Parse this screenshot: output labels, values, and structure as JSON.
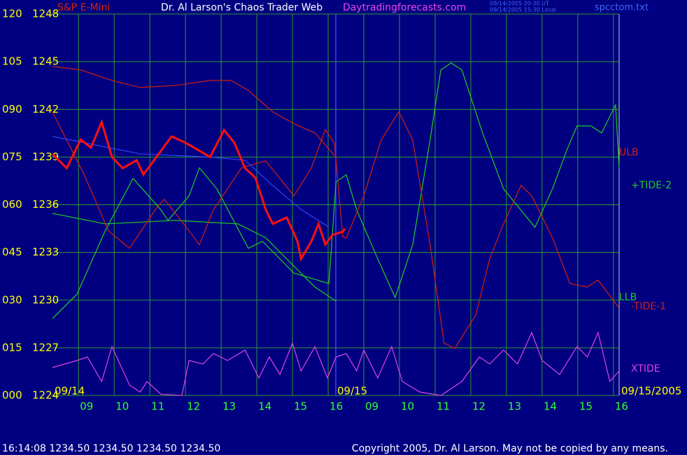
{
  "header": {
    "symbol": "S&P E-Mini",
    "title": "Dr. Al Larson's Chaos Trader Web",
    "site": "Daytradingforecasts.com",
    "ut": "09/14/2005 20:30 UT",
    "local": "09/14/2005 15:30 Local",
    "file": "spcctom.txt"
  },
  "footer": {
    "status": "16:14:08  1234.50 1234.50 1234.50 1234.50",
    "copyright": "Copyright 2005, Dr. Al Larson. May not be copied by any means."
  },
  "chart_data": {
    "type": "line",
    "annotations": [
      "09/14",
      "09/15",
      "09/15/2005"
    ],
    "xlim": [
      8.27,
      24.16
    ],
    "xticks": [
      {
        "value": 9,
        "label": "09"
      },
      10,
      11,
      12,
      13,
      14,
      15,
      16,
      {
        "value": 17,
        "label": "09"
      },
      {
        "value": 18,
        "label": "10"
      },
      {
        "value": 19,
        "label": "11"
      },
      {
        "value": 20,
        "label": "12"
      },
      {
        "value": 21,
        "label": "13"
      },
      {
        "value": 22,
        "label": "14"
      },
      {
        "value": 23,
        "label": "15"
      },
      {
        "value": 24,
        "label": "16"
      }
    ],
    "ylim": [
      0,
      120
    ],
    "yticks": [
      {
        "value": 0,
        "label": "000"
      },
      {
        "value": 15,
        "label": "015"
      },
      {
        "value": 30,
        "label": "030"
      },
      {
        "value": 45,
        "label": "045"
      },
      {
        "value": 60,
        "label": "060"
      },
      {
        "value": 75,
        "label": "075"
      },
      {
        "value": 90,
        "label": "090"
      },
      105,
      120
    ],
    "y2lim": [
      1224,
      1248
    ],
    "y2ticks": [
      1224,
      1227,
      1230,
      1233,
      1236,
      1239,
      1242,
      1245,
      1248
    ],
    "grid": true,
    "series": [
      {
        "name": "ULB",
        "color": "#d02010",
        "x": [
          8.27,
          9.06,
          9.94,
          10.73,
          11.71,
          12.69,
          13.27,
          13.76,
          14.45,
          15.04,
          15.63,
          16.22
        ],
        "values": [
          103.5,
          102.4,
          99.1,
          96.9,
          97.5,
          99.1,
          99.1,
          96.0,
          89.2,
          85.5,
          82.6,
          74.9
        ]
      },
      {
        "name": "+TIDE-2",
        "color": "#22cc22",
        "x": [
          8.27,
          8.96,
          9.75,
          10.53,
          11.31,
          11.51,
          12.1,
          12.39,
          12.88,
          13.76,
          14.16,
          15.04,
          16.02,
          16.22,
          16.51,
          16.8,
          17.39,
          17.88,
          18.37,
          18.86,
          19.16,
          19.45,
          19.75,
          20.33,
          20.92,
          21.8,
          22.29,
          22.69,
          22.98,
          23.37,
          23.67,
          24.06,
          24.16
        ],
        "values": [
          24.2,
          31.9,
          51.8,
          68.3,
          58.4,
          55.1,
          62.8,
          71.6,
          65.0,
          46.3,
          48.5,
          38.5,
          35.2,
          67.2,
          69.4,
          58.4,
          43.0,
          30.8,
          47.4,
          80.4,
          102.4,
          104.6,
          102.4,
          82.6,
          65.0,
          52.9,
          65.0,
          77.1,
          84.8,
          84.8,
          82.6,
          91.4,
          71.6
        ]
      },
      {
        "name": "LLB",
        "color": "#22cc22",
        "x": [
          8.27,
          9.75,
          11.71,
          13.47,
          14.25,
          15.04,
          15.63,
          16.22
        ],
        "values": [
          57.3,
          54.0,
          55.1,
          54.0,
          49.6,
          40.7,
          34.1,
          29.7
        ]
      },
      {
        "name": "-TIDE-1",
        "color": "#d02010",
        "x": [
          8.27,
          9.16,
          9.84,
          10.43,
          11.22,
          11.41,
          12.1,
          12.39,
          12.78,
          13.57,
          14.25,
          15.04,
          15.53,
          15.92,
          16.18,
          16.41,
          16.51,
          17.0,
          17.49,
          17.98,
          18.37,
          18.86,
          19.25,
          19.55,
          20.14,
          20.53,
          20.92,
          21.41,
          21.71,
          22.29,
          22.78,
          23.27,
          23.57,
          24.16
        ],
        "values": [
          89.2,
          69.4,
          51.8,
          46.3,
          59.5,
          61.7,
          51.8,
          47.4,
          58.4,
          71.6,
          73.8,
          62.8,
          71.6,
          83.7,
          79.3,
          50.0,
          49.6,
          62.8,
          80.4,
          89.2,
          80.4,
          47.4,
          16.5,
          14.8,
          25.3,
          43.0,
          54.0,
          66.1,
          62.8,
          49.6,
          35.2,
          34.1,
          36.3,
          27.5
        ]
      },
      {
        "name": "XTIDE",
        "color": "#dd44dd",
        "x": [
          8.27,
          8.96,
          9.25,
          9.65,
          9.94,
          10.43,
          10.73,
          10.92,
          11.31,
          11.9,
          12.1,
          12.49,
          12.78,
          13.18,
          13.67,
          14.06,
          14.35,
          14.65,
          15.0,
          15.24,
          15.63,
          15.98,
          16.22,
          16.51,
          16.8,
          17.0,
          17.39,
          17.78,
          18.08,
          18.57,
          19.16,
          19.75,
          20.24,
          20.53,
          20.92,
          21.31,
          21.71,
          22.0,
          22.49,
          22.98,
          23.27,
          23.57,
          23.9,
          24.16
        ],
        "values": [
          8.8,
          11.0,
          12.1,
          4.4,
          15.4,
          3.3,
          1.1,
          4.4,
          0.4,
          0,
          11.0,
          9.9,
          13.2,
          11.0,
          14.3,
          5.5,
          12.1,
          6.6,
          16.5,
          7.7,
          15.4,
          5.5,
          12.1,
          13.2,
          7.7,
          14.3,
          5.5,
          15.4,
          4.4,
          1.1,
          0,
          4.4,
          12.1,
          9.9,
          14.3,
          9.9,
          19.8,
          11.0,
          6.6,
          15.4,
          12.1,
          19.8,
          4.4,
          7.7
        ]
      },
      {
        "color": "#3344ff",
        "axis": "y2",
        "x": [
          8.27,
          10.73,
          12.69,
          13.67,
          14.45,
          15.24,
          16.02
        ],
        "values": [
          1240.3,
          1239.2,
          1239.0,
          1238.8,
          1237.2,
          1235.7,
          1234.6
        ]
      },
      {
        "color": "#ff1010",
        "axis": "y2",
        "x": [
          8.27,
          8.67,
          9.06,
          9.35,
          9.65,
          9.94,
          10.24,
          10.63,
          10.82,
          11.12,
          11.61,
          12.0,
          12.39,
          12.69,
          13.08,
          13.37,
          13.67,
          13.96,
          14.25,
          14.45,
          14.84,
          15.14,
          15.24,
          15.53,
          15.73,
          15.92,
          16.12,
          16.41,
          16.47
        ],
        "values": [
          1239.2,
          1238.3,
          1240.1,
          1239.6,
          1241.2,
          1239.0,
          1238.3,
          1238.8,
          1237.9,
          1238.8,
          1240.3,
          1239.9,
          1239.4,
          1239.0,
          1240.7,
          1239.9,
          1238.3,
          1237.7,
          1235.7,
          1234.8,
          1235.2,
          1233.7,
          1232.6,
          1233.7,
          1234.8,
          1233.5,
          1234.1,
          1234.3,
          1234.5
        ]
      }
    ]
  }
}
